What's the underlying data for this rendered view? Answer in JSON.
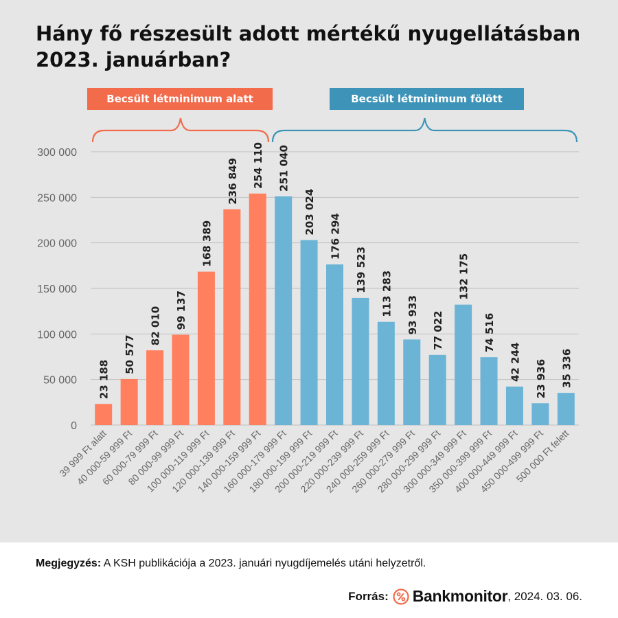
{
  "title": "Hány fő részesült adott mértékű nyugellátásban 2023. januárban?",
  "groups": {
    "below": {
      "label": "Becsült létminimum alatt",
      "color": "#f26b4b"
    },
    "above": {
      "label": "Becsült létminimum fölött",
      "color": "#3d94b8"
    }
  },
  "note": {
    "label": "Megjegyzés:",
    "text": " A KSH publikációja a 2023. januári nyugdíjemelés utáni helyzetről."
  },
  "source": {
    "label": "Forrás:",
    "brand": "Bankmonitor",
    "date": ", 2024. 03. 06.",
    "logo_icon": "percent-icon",
    "logo_color": "#f26b4b"
  },
  "chart_data": {
    "type": "bar",
    "categories": [
      "39 999 Ft alatt",
      "40 000-59 999 Ft",
      "60 000-79 999 Ft",
      "80 000-99 999 Ft",
      "100 000-119 999 Ft",
      "120 000-139 999 Ft",
      "140 000-159 999 Ft",
      "160 000-179 999 Ft",
      "180 000-199 999 Ft",
      "200 000-219 999 Ft",
      "220 000-239 999 Ft",
      "240 000-259 999 Ft",
      "260 000-279 999 Ft",
      "280 000-299 999 Ft",
      "300 000-349 999 Ft",
      "350 000-399 999 Ft",
      "400 000-449 999 Ft",
      "450 000-499 999 Ft",
      "500 000 Ft felett"
    ],
    "values": [
      23188,
      50577,
      82010,
      99137,
      168389,
      236849,
      254110,
      251040,
      203024,
      176294,
      139523,
      113283,
      93933,
      77022,
      132175,
      74516,
      42244,
      23936,
      35336
    ],
    "value_labels": [
      "23 188",
      "50 577",
      "82 010",
      "99 137",
      "168 389",
      "236 849",
      "254 110",
      "251 040",
      "203 024",
      "176 294",
      "139 523",
      "113 283",
      "93 933",
      "77 022",
      "132 175",
      "74 516",
      "42 244",
      "23 936",
      "35 336"
    ],
    "group": [
      "below",
      "below",
      "below",
      "below",
      "below",
      "below",
      "below",
      "above",
      "above",
      "above",
      "above",
      "above",
      "above",
      "above",
      "above",
      "above",
      "above",
      "above",
      "above"
    ],
    "colors": {
      "below": "#ff7f5e",
      "above": "#6cb4d6"
    },
    "yticks": [
      0,
      50000,
      100000,
      150000,
      200000,
      250000,
      300000
    ],
    "ytick_labels": [
      "0",
      "50 000",
      "100 000",
      "150 000",
      "200 000",
      "250 000",
      "300 000"
    ],
    "ylim": [
      0,
      300000
    ],
    "grid": true,
    "xlabel": "",
    "ylabel": ""
  }
}
